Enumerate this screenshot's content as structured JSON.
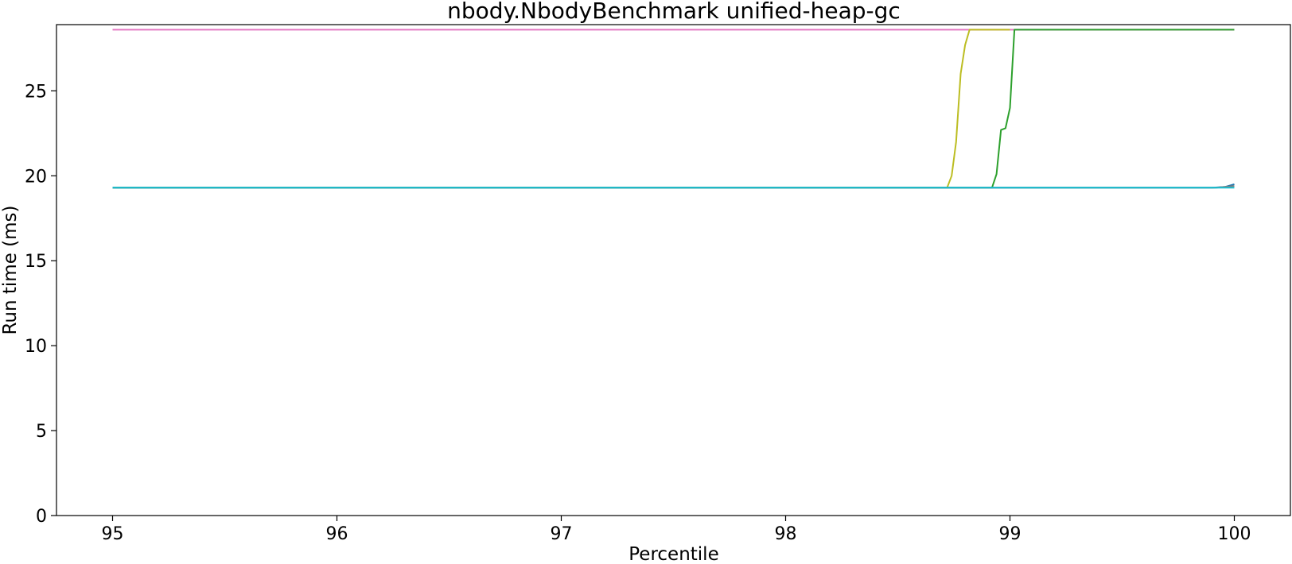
{
  "chart_data": {
    "type": "line",
    "title": "nbody.NbodyBenchmark unified-heap-gc",
    "xlabel": "Percentile",
    "ylabel": "Run time (ms)",
    "xlim": [
      94.75,
      100.25
    ],
    "ylim": [
      0,
      28.9
    ],
    "xticks": [
      95,
      96,
      97,
      98,
      99,
      100
    ],
    "yticks": [
      0,
      5,
      10,
      15,
      20,
      25
    ],
    "grid": false,
    "legend": "none",
    "series": [
      {
        "color": "#e377c2",
        "points": [
          [
            95,
            28.6
          ],
          [
            100,
            28.6
          ]
        ]
      },
      {
        "color": "#bcbd22",
        "points": [
          [
            95,
            19.3
          ],
          [
            98.72,
            19.3
          ],
          [
            98.74,
            20.0
          ],
          [
            98.76,
            22.0
          ],
          [
            98.78,
            26.0
          ],
          [
            98.8,
            27.7
          ],
          [
            98.82,
            28.6
          ],
          [
            99.0,
            28.6
          ]
        ]
      },
      {
        "color": "#2ca02c",
        "points": [
          [
            95,
            19.3
          ],
          [
            98.92,
            19.3
          ],
          [
            98.94,
            20.1
          ],
          [
            98.96,
            22.7
          ],
          [
            98.98,
            22.8
          ],
          [
            99.0,
            24.0
          ],
          [
            99.02,
            28.6
          ],
          [
            100,
            28.6
          ]
        ]
      },
      {
        "color": "#1f77b4",
        "points": [
          [
            95,
            19.3
          ],
          [
            99.9,
            19.3
          ],
          [
            99.96,
            19.35
          ],
          [
            100,
            19.5
          ]
        ]
      },
      {
        "color": "#7f7f7f",
        "points": [
          [
            95,
            19.3
          ],
          [
            99.92,
            19.3
          ],
          [
            100,
            19.4
          ]
        ]
      },
      {
        "color": "#17becf",
        "points": [
          [
            95,
            19.3
          ],
          [
            100,
            19.3
          ]
        ]
      }
    ]
  }
}
